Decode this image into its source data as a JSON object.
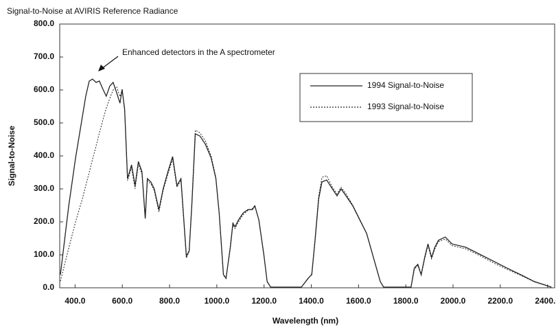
{
  "chart_data": {
    "type": "line",
    "title": "Signal-to-Noise at AVIRIS Reference Radiance",
    "xlabel": "Wavelength (nm)",
    "ylabel": "Signal-to-Noise",
    "annotation": "Enhanced detectors in the A spectrometer",
    "xlim": [
      335,
      2430
    ],
    "ylim": [
      0,
      800
    ],
    "xticks": [
      {
        "value": 400,
        "label": "400.0"
      },
      {
        "value": 600,
        "label": "600.0"
      },
      {
        "value": 800,
        "label": "800.0"
      },
      {
        "value": 1000,
        "label": "1000.0"
      },
      {
        "value": 1200,
        "label": "1200.0"
      },
      {
        "value": 1400,
        "label": "1400.0"
      },
      {
        "value": 1600,
        "label": "1600.0"
      },
      {
        "value": 1800,
        "label": "1800.0"
      },
      {
        "value": 2000,
        "label": "2000.0"
      },
      {
        "value": 2200,
        "label": "2200.0"
      },
      {
        "value": 2400,
        "label": "2400.0"
      }
    ],
    "yticks": [
      {
        "value": 0,
        "label": "0.0"
      },
      {
        "value": 100,
        "label": "100.0"
      },
      {
        "value": 200,
        "label": "200.0"
      },
      {
        "value": 300,
        "label": "300.0"
      },
      {
        "value": 400,
        "label": "400.0"
      },
      {
        "value": 500,
        "label": "500.0"
      },
      {
        "value": 600,
        "label": "600.0"
      },
      {
        "value": 700,
        "label": "700.0"
      },
      {
        "value": 800,
        "label": "800.0"
      }
    ],
    "x": [
      338,
      373,
      402,
      431,
      445,
      460,
      474,
      489,
      503,
      518,
      532,
      547,
      561,
      576,
      590,
      599,
      610,
      622,
      639,
      654,
      668,
      683,
      697,
      706,
      721,
      735,
      755,
      773,
      793,
      813,
      831,
      848,
      871,
      883,
      894,
      909,
      929,
      952,
      976,
      996,
      1010,
      1028,
      1039,
      1057,
      1068,
      1077,
      1092,
      1112,
      1132,
      1150,
      1161,
      1178,
      1199,
      1213,
      1228,
      1358,
      1387,
      1402,
      1416,
      1431,
      1445,
      1465,
      1489,
      1509,
      1526,
      1547,
      1576,
      1605,
      1634,
      1663,
      1692,
      1706,
      1822,
      1836,
      1851,
      1865,
      1880,
      1894,
      1909,
      1923,
      1938,
      1967,
      1996,
      2054,
      2112,
      2170,
      2228,
      2286,
      2344,
      2416
    ],
    "series": [
      {
        "name": "1994 Signal-to-Noise",
        "color": "#222222",
        "style": "solid",
        "values": [
          40,
          248,
          394,
          519,
          581,
          627,
          633,
          623,
          627,
          602,
          581,
          612,
          623,
          592,
          560,
          602,
          540,
          331,
          373,
          310,
          383,
          352,
          210,
          331,
          321,
          300,
          237,
          300,
          352,
          398,
          310,
          331,
          96,
          112,
          248,
          467,
          460,
          435,
          394,
          331,
          227,
          40,
          29,
          123,
          196,
          185,
          206,
          227,
          237,
          237,
          248,
          206,
          102,
          19,
          2,
          2,
          29,
          40,
          144,
          269,
          321,
          327,
          300,
          279,
          300,
          279,
          248,
          206,
          165,
          92,
          19,
          2,
          2,
          60,
          71,
          40,
          92,
          133,
          92,
          123,
          144,
          154,
          133,
          123,
          102,
          81,
          60,
          40,
          19,
          2
        ]
      },
      {
        "name": "1993 Signal-to-Noise",
        "color": "#222222",
        "style": "dotted",
        "values": [
          20,
          120,
          200,
          270,
          310,
          350,
          390,
          430,
          470,
          510,
          545,
          575,
          600,
          610,
          580,
          600,
          545,
          325,
          365,
          300,
          375,
          345,
          215,
          325,
          315,
          295,
          230,
          295,
          345,
          390,
          305,
          325,
          90,
          110,
          255,
          478,
          470,
          445,
          400,
          335,
          225,
          38,
          28,
          120,
          190,
          180,
          200,
          222,
          235,
          240,
          250,
          205,
          100,
          18,
          2,
          2,
          28,
          42,
          150,
          278,
          335,
          340,
          305,
          285,
          305,
          285,
          250,
          208,
          165,
          92,
          18,
          2,
          2,
          55,
          68,
          38,
          88,
          128,
          88,
          118,
          140,
          148,
          128,
          118,
          98,
          76,
          56,
          38,
          18,
          2
        ]
      }
    ],
    "legend": "upper right"
  }
}
